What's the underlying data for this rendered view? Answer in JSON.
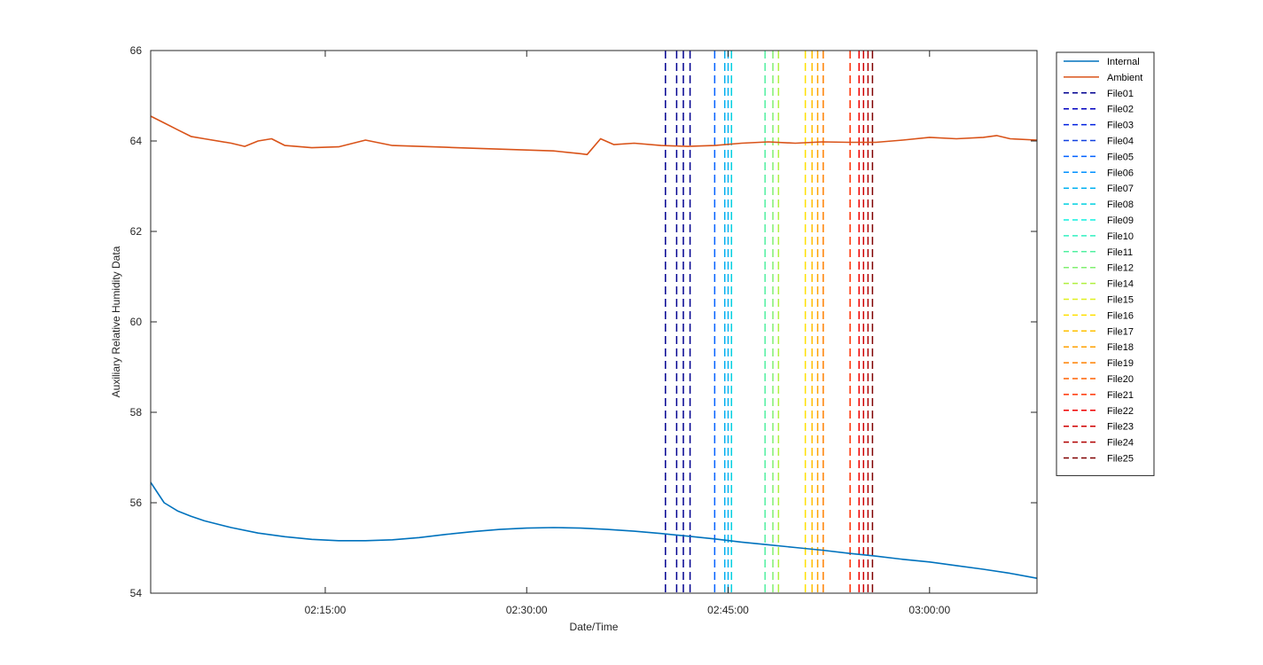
{
  "chart_data": {
    "type": "line",
    "title": "",
    "xlabel": "Date/Time",
    "ylabel": "Auxiliary Relative Humidity Data",
    "xlim": [
      "02:02:00",
      "03:08:00"
    ],
    "ylim": [
      54,
      66
    ],
    "x_ticks": [
      "02:15:00",
      "02:30:00",
      "02:45:00",
      "03:00:00"
    ],
    "y_ticks": [
      54,
      56,
      58,
      60,
      62,
      64,
      66
    ],
    "grid": false,
    "legend_position": "outside-right-top",
    "series": [
      {
        "name": "Internal",
        "color": "#0072BD",
        "x": [
          "02:02:00",
          "02:03:00",
          "02:04:00",
          "02:05:00",
          "02:06:00",
          "02:08:00",
          "02:10:00",
          "02:12:00",
          "02:14:00",
          "02:16:00",
          "02:18:00",
          "02:20:00",
          "02:22:00",
          "02:24:00",
          "02:26:00",
          "02:28:00",
          "02:30:00",
          "02:32:00",
          "02:34:00",
          "02:36:00",
          "02:38:00",
          "02:40:00",
          "02:42:00",
          "02:44:00",
          "02:46:00",
          "02:48:00",
          "02:50:00",
          "02:52:00",
          "02:54:00",
          "02:56:00",
          "02:58:00",
          "03:00:00",
          "03:02:00",
          "03:04:00",
          "03:06:00",
          "03:08:00"
        ],
        "y": [
          56.45,
          56.0,
          55.82,
          55.7,
          55.6,
          55.45,
          55.33,
          55.25,
          55.19,
          55.16,
          55.16,
          55.18,
          55.23,
          55.3,
          55.36,
          55.41,
          55.44,
          55.45,
          55.44,
          55.41,
          55.37,
          55.32,
          55.26,
          55.2,
          55.13,
          55.07,
          55.01,
          54.95,
          54.88,
          54.82,
          54.75,
          54.69,
          54.61,
          54.53,
          54.44,
          54.33
        ]
      },
      {
        "name": "Ambient",
        "color": "#D95319",
        "x": [
          "02:02:00",
          "02:03:00",
          "02:04:00",
          "02:05:00",
          "02:06:00",
          "02:08:00",
          "02:09:00",
          "02:10:00",
          "02:11:00",
          "02:12:00",
          "02:14:00",
          "02:16:00",
          "02:18:00",
          "02:20:00",
          "02:22:00",
          "02:24:00",
          "02:26:00",
          "02:28:00",
          "02:30:00",
          "02:32:00",
          "02:34:00",
          "02:34:30",
          "02:35:30",
          "02:36:30",
          "02:38:00",
          "02:40:00",
          "02:42:00",
          "02:44:00",
          "02:46:00",
          "02:48:00",
          "02:50:00",
          "02:52:00",
          "02:54:00",
          "02:56:00",
          "02:58:00",
          "03:00:00",
          "03:02:00",
          "03:04:00",
          "03:05:00",
          "03:06:00",
          "03:08:00"
        ],
        "y": [
          64.55,
          64.4,
          64.25,
          64.1,
          64.05,
          63.95,
          63.88,
          64.0,
          64.05,
          63.9,
          63.85,
          63.87,
          64.02,
          63.9,
          63.88,
          63.86,
          63.84,
          63.82,
          63.8,
          63.78,
          63.72,
          63.7,
          64.05,
          63.92,
          63.95,
          63.9,
          63.88,
          63.9,
          63.95,
          63.98,
          63.95,
          63.98,
          63.97,
          63.97,
          64.02,
          64.08,
          64.05,
          64.08,
          64.12,
          64.05,
          64.02
        ]
      }
    ],
    "markers": [
      {
        "name": "File01",
        "color": "#000090",
        "times": [
          "02:40:20",
          "02:41:10",
          "02:41:40",
          "02:42:10"
        ]
      },
      {
        "name": "File02",
        "color": "#0000C0",
        "times": []
      },
      {
        "name": "File03",
        "color": "#0020E0",
        "times": []
      },
      {
        "name": "File04",
        "color": "#1040E0",
        "times": []
      },
      {
        "name": "File05",
        "color": "#0060FF",
        "times": [
          "02:44:00"
        ]
      },
      {
        "name": "File06",
        "color": "#0090FF",
        "times": []
      },
      {
        "name": "File07",
        "color": "#00B0F0",
        "times": [
          "02:44:45",
          "02:45:00"
        ]
      },
      {
        "name": "File08",
        "color": "#00D0E0",
        "times": [
          "02:45:15"
        ]
      },
      {
        "name": "File09",
        "color": "#10F0E0",
        "times": []
      },
      {
        "name": "File10",
        "color": "#30F0C0",
        "times": []
      },
      {
        "name": "File11",
        "color": "#50F0A0",
        "times": [
          "02:47:45"
        ]
      },
      {
        "name": "File12",
        "color": "#80F070",
        "times": [
          "02:48:20"
        ]
      },
      {
        "name": "File14",
        "color": "#B0F040",
        "times": [
          "02:48:45"
        ]
      },
      {
        "name": "File15",
        "color": "#E0F020",
        "times": []
      },
      {
        "name": "File16",
        "color": "#FFE000",
        "times": [
          "02:50:45"
        ]
      },
      {
        "name": "File17",
        "color": "#FFC000",
        "times": [
          "02:51:15"
        ]
      },
      {
        "name": "File18",
        "color": "#FFA000",
        "times": [
          "02:51:40"
        ]
      },
      {
        "name": "File19",
        "color": "#FF8000",
        "times": [
          "02:52:05"
        ]
      },
      {
        "name": "File20",
        "color": "#FF6000",
        "times": []
      },
      {
        "name": "File21",
        "color": "#FF3000",
        "times": [
          "02:54:05"
        ]
      },
      {
        "name": "File22",
        "color": "#F00000",
        "times": [
          "02:54:45"
        ]
      },
      {
        "name": "File23",
        "color": "#D00000",
        "times": [
          "02:55:05"
        ]
      },
      {
        "name": "File24",
        "color": "#B00000",
        "times": [
          "02:55:25"
        ]
      },
      {
        "name": "File25",
        "color": "#800000",
        "times": [
          "02:55:45"
        ]
      }
    ]
  }
}
